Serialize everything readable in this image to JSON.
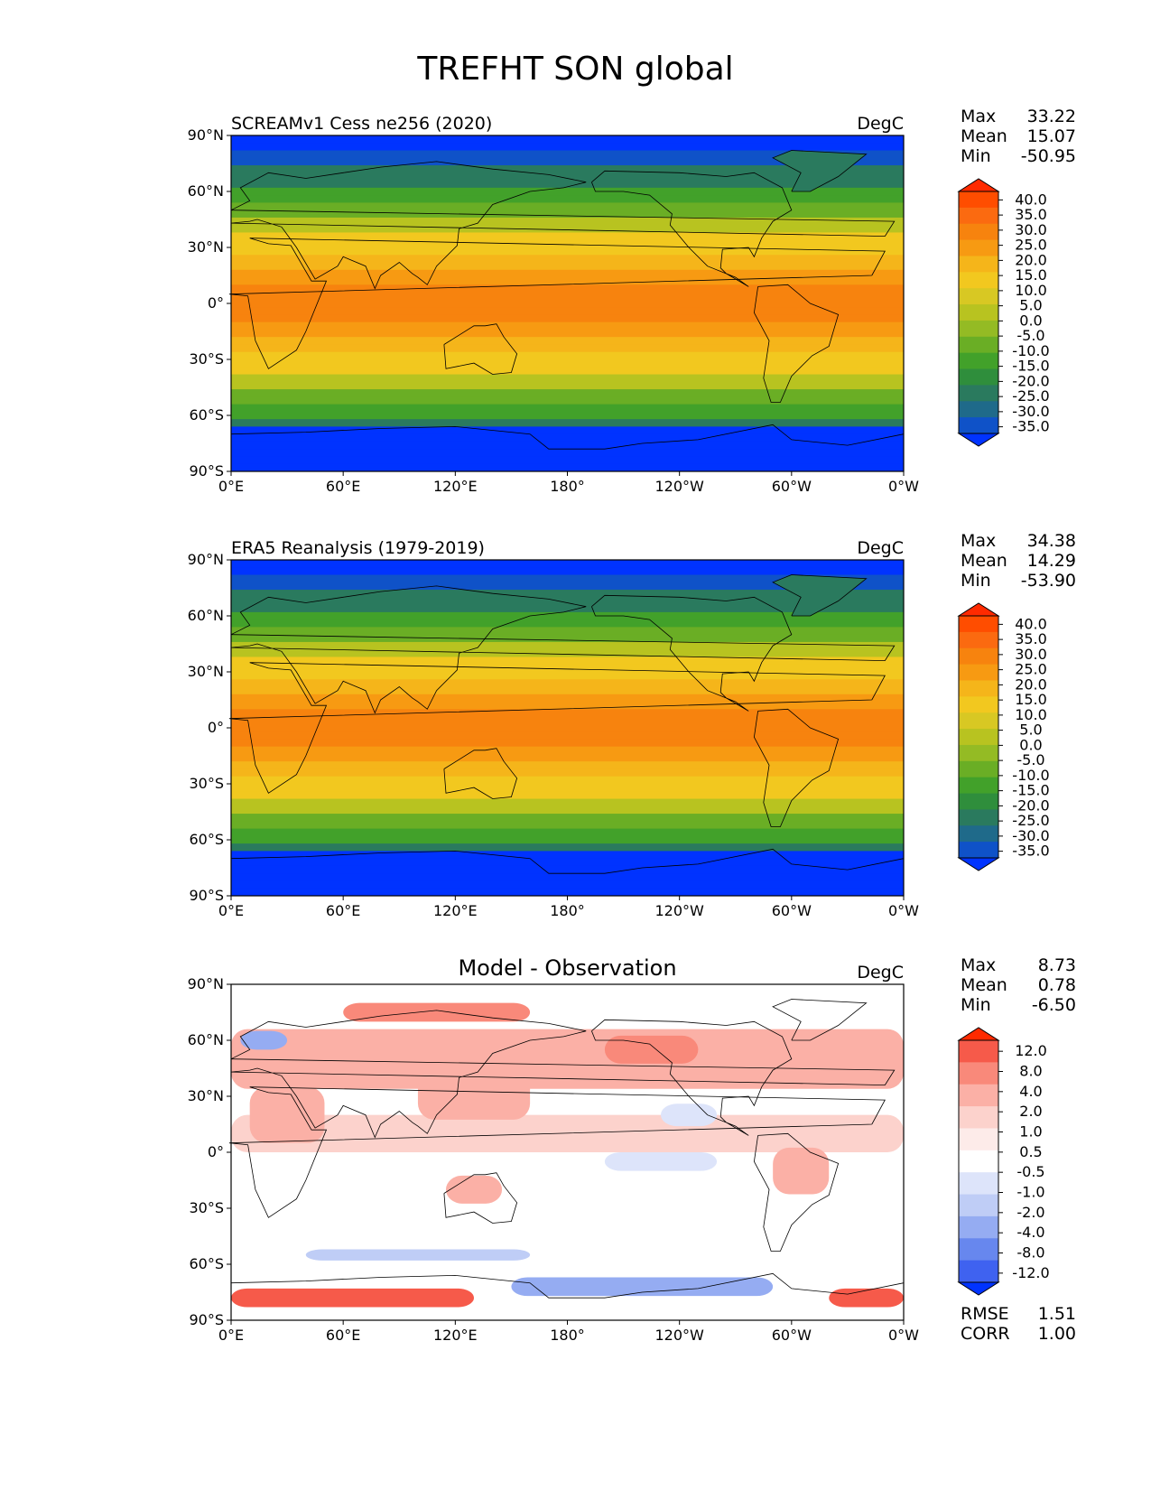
{
  "figure": {
    "title": "TREFHT SON global"
  },
  "axes": {
    "lat_ticks": [
      "90°N",
      "60°N",
      "30°N",
      "0°",
      "30°S",
      "60°S",
      "90°S"
    ],
    "lon_ticks": [
      "0°E",
      "60°E",
      "120°E",
      "180°",
      "120°W",
      "60°W",
      "0°W"
    ]
  },
  "panels": [
    {
      "id": "model",
      "title": "SCREAMv1 Cess ne256 (2020)",
      "units": "DegC",
      "stats": [
        {
          "label": "Max",
          "value": "33.22"
        },
        {
          "label": "Mean",
          "value": "15.07"
        },
        {
          "label": "Min",
          "value": "-50.95"
        }
      ]
    },
    {
      "id": "obs",
      "title": "ERA5 Reanalysis (1979-2019)",
      "units": "DegC",
      "stats": [
        {
          "label": "Max",
          "value": "34.38"
        },
        {
          "label": "Mean",
          "value": "14.29"
        },
        {
          "label": "Min",
          "value": "-53.90"
        }
      ]
    },
    {
      "id": "diff",
      "title": "Model - Observation",
      "units": "DegC",
      "stats": [
        {
          "label": "Max",
          "value": "8.73"
        },
        {
          "label": "Mean",
          "value": "0.78"
        },
        {
          "label": "Min",
          "value": "-6.50"
        }
      ],
      "extra_stats": [
        {
          "label": "RMSE",
          "value": "1.51"
        },
        {
          "label": "CORR",
          "value": "1.00"
        }
      ]
    }
  ],
  "colorbars": {
    "temperature": {
      "labels": [
        "40.0",
        "35.0",
        "30.0",
        "25.0",
        "20.0",
        "15.0",
        "10.0",
        "5.0",
        "0.0",
        "-5.0",
        "-10.0",
        "-15.0",
        "-20.0",
        "-25.0",
        "-30.0",
        "-35.0"
      ],
      "colors": [
        "#ff2a00",
        "#ff4d00",
        "#fb6a10",
        "#f7830e",
        "#f79a12",
        "#f5b51a",
        "#f2c81f",
        "#d8c823",
        "#b8c320",
        "#94bb24",
        "#6aae25",
        "#42a12a",
        "#2f8e3c",
        "#2a7a5e",
        "#1f6a8a",
        "#0f52c8",
        "#0033ff"
      ]
    },
    "difference": {
      "labels": [
        "12.0",
        "8.0",
        "4.0",
        "2.0",
        "1.0",
        "0.5",
        "-0.5",
        "-1.0",
        "-2.0",
        "-4.0",
        "-8.0",
        "-12.0"
      ],
      "colors": [
        "#ff2a00",
        "#f65a4a",
        "#f9897a",
        "#fbb0a6",
        "#fcd2cc",
        "#fdebe9",
        "#ffffff",
        "#dde4fa",
        "#bfcdf6",
        "#95acf2",
        "#6787ee",
        "#3f62f0",
        "#0033ff"
      ]
    }
  },
  "panel_colors": {
    "ocean_bands_temp": [
      "#0033ff",
      "#0f52c8",
      "#2a7a5e",
      "#42a12a",
      "#6aae25",
      "#b8c320",
      "#f2c81f",
      "#f5b51a",
      "#f79a12",
      "#f7830e"
    ],
    "coast": "#000000"
  }
}
